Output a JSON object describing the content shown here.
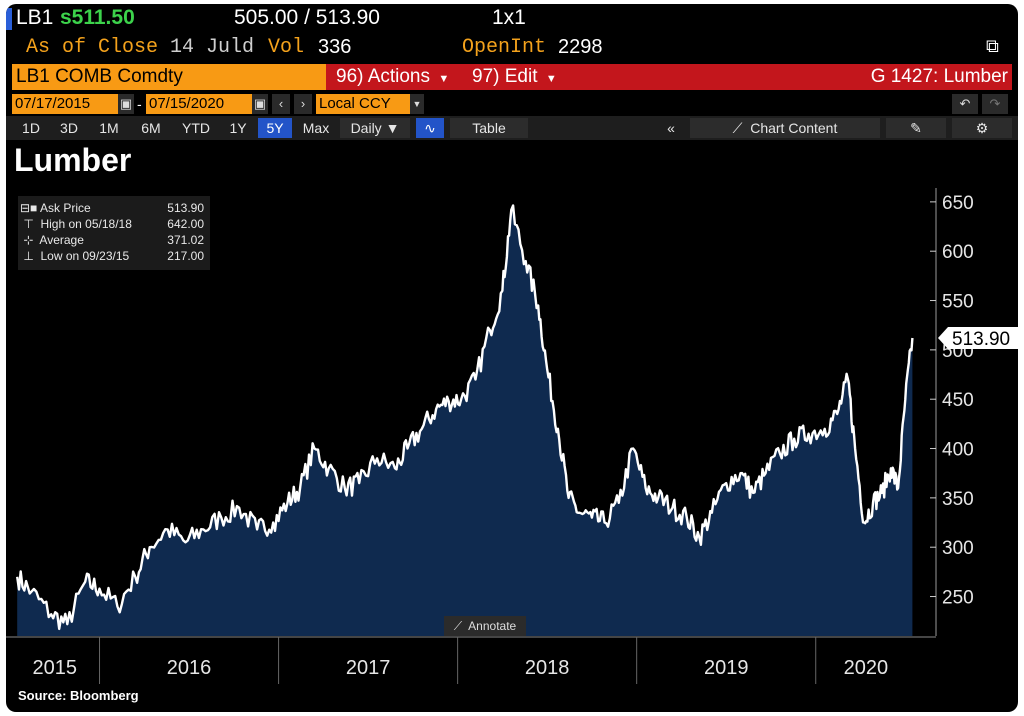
{
  "header": {
    "ticker": "LB1",
    "last_price": "s511.50",
    "bid_ask": "505.00 / 513.90",
    "size": "1x1",
    "as_of_label": "As of Close",
    "as_of_date": "14 Juld",
    "vol_label": "Vol",
    "vol_value": "336",
    "openint_label": "OpenInt",
    "openint_value": "2298"
  },
  "toolbar": {
    "security": "LB1 COMB Comdty",
    "actions_label": "96) Actions",
    "edit_label": "97) Edit",
    "function_title": "G 1427: Lumber",
    "start_date": "07/17/2015",
    "end_date": "07/15/2020",
    "currency": "Local CCY",
    "range_buttons": [
      "1D",
      "3D",
      "1M",
      "6M",
      "YTD",
      "1Y",
      "5Y",
      "Max"
    ],
    "active_range": "5Y",
    "frequency": "Daily",
    "table_label": "Table",
    "chart_content_label": "Chart Content",
    "annotate_label": "Annotate"
  },
  "legend": [
    {
      "label": "Ask Price",
      "value": "513.90"
    },
    {
      "label": "High on 05/18/18",
      "value": "642.00"
    },
    {
      "label": "Average",
      "value": "371.02"
    },
    {
      "label": "Low on 09/23/15",
      "value": "217.00"
    }
  ],
  "source": "Source: Bloomberg",
  "colors": {
    "background": "#000000",
    "area_fill": "#0f2a4f",
    "line": "#ffffff",
    "orange": "#f89a14",
    "red": "#c3161c",
    "green": "#3cd24b"
  },
  "chart_data": {
    "type": "area",
    "title": "Lumber",
    "last_value_label": "513.90",
    "ylim": [
      210,
      660
    ],
    "yticks": [
      250,
      300,
      350,
      400,
      450,
      500,
      550,
      600,
      650
    ],
    "year_labels": [
      "2015",
      "2016",
      "2017",
      "2018",
      "2019",
      "2020"
    ],
    "x": [
      2015.54,
      2015.62,
      2015.73,
      2015.82,
      2015.92,
      2016.0,
      2016.1,
      2016.2,
      2016.28,
      2016.38,
      2016.48,
      2016.58,
      2016.68,
      2016.78,
      2016.88,
      2016.97,
      2017.05,
      2017.12,
      2017.2,
      2017.28,
      2017.37,
      2017.45,
      2017.55,
      2017.65,
      2017.72,
      2017.8,
      2017.88,
      2017.95,
      2018.02,
      2018.1,
      2018.18,
      2018.25,
      2018.3,
      2018.38,
      2018.45,
      2018.5,
      2018.56,
      2018.62,
      2018.68,
      2018.75,
      2018.82,
      2018.9,
      2018.98,
      2019.05,
      2019.12,
      2019.2,
      2019.28,
      2019.35,
      2019.42,
      2019.5,
      2019.58,
      2019.65,
      2019.72,
      2019.8,
      2019.88,
      2019.96,
      2020.05,
      2020.12,
      2020.18,
      2020.22,
      2020.27,
      2020.32,
      2020.37,
      2020.42,
      2020.46,
      2020.5,
      2020.54
    ],
    "values": [
      270,
      255,
      232,
      222,
      265,
      258,
      240,
      270,
      300,
      318,
      305,
      318,
      330,
      340,
      318,
      325,
      345,
      360,
      400,
      380,
      360,
      365,
      390,
      380,
      400,
      420,
      440,
      448,
      450,
      470,
      520,
      560,
      642,
      590,
      545,
      480,
      420,
      350,
      335,
      330,
      325,
      345,
      400,
      360,
      350,
      340,
      330,
      310,
      335,
      365,
      375,
      355,
      375,
      395,
      410,
      415,
      420,
      435,
      470,
      400,
      325,
      345,
      355,
      380,
      360,
      450,
      512
    ]
  }
}
